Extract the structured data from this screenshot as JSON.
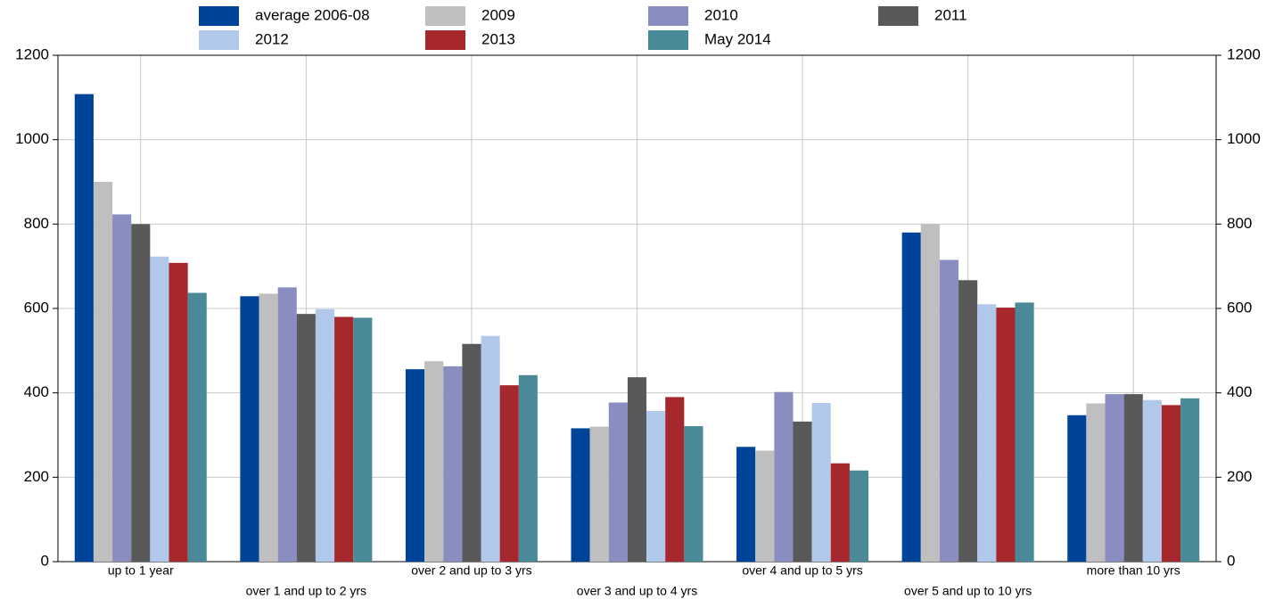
{
  "chart_data": {
    "type": "bar",
    "categories": [
      "up to 1 year",
      "over 1 and up to 2 yrs",
      "over 2 and up to 3 yrs",
      "over 3 and up to 4 yrs",
      "over 4 and up to 5 yrs",
      "over 5 and up to 10 yrs",
      "more than 10 yrs"
    ],
    "series": [
      {
        "name": "average 2006-08",
        "color": "#00449a",
        "values": [
          1108,
          629,
          456,
          316,
          272,
          780,
          347
        ]
      },
      {
        "name": "2009",
        "color": "#bfbfbf",
        "values": [
          900,
          635,
          475,
          320,
          263,
          800,
          375
        ]
      },
      {
        "name": "2010",
        "color": "#8a8dbf",
        "values": [
          823,
          650,
          463,
          377,
          402,
          715,
          397
        ]
      },
      {
        "name": "2011",
        "color": "#595959",
        "values": [
          800,
          587,
          516,
          437,
          332,
          667,
          397
        ]
      },
      {
        "name": "2012",
        "color": "#b0c8ea",
        "values": [
          723,
          598,
          535,
          357,
          376,
          610,
          383
        ]
      },
      {
        "name": "2013",
        "color": "#a6282c",
        "values": [
          708,
          580,
          418,
          390,
          233,
          602,
          371
        ]
      },
      {
        "name": "May 2014",
        "color": "#4a8a98",
        "values": [
          637,
          578,
          442,
          321,
          216,
          614,
          387
        ]
      }
    ],
    "ylim": [
      0,
      1200
    ],
    "yticks": [
      0,
      200,
      400,
      600,
      800,
      1000,
      1200
    ],
    "y2lim": [
      0,
      1200
    ],
    "y2ticks": [
      0,
      200,
      400,
      600,
      800,
      1000,
      1200
    ],
    "grid": true
  }
}
